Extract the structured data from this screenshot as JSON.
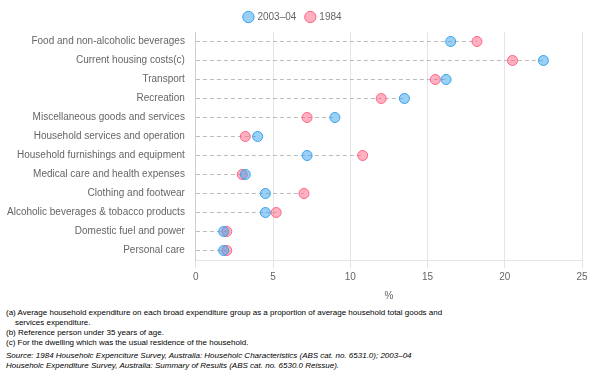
{
  "chart_data": {
    "type": "dot",
    "categories": [
      "Food and non-alcoholic beverages",
      "Current housing costs(c)",
      "Transport",
      "Recreation",
      "Miscellaneous goods and services",
      "Household services and operation",
      "Household furnishings and equipment",
      "Medical care and health expenses",
      "Clothing and footwear",
      "Alcoholic beverages & tobacco products",
      "Domestic fuel and power",
      "Personal care"
    ],
    "series": [
      {
        "name": "2003–04",
        "values": [
          16.5,
          22.5,
          16.2,
          13.5,
          9.0,
          4.0,
          7.2,
          3.2,
          4.5,
          4.5,
          1.8,
          1.8
        ]
      },
      {
        "name": "1984",
        "values": [
          18.2,
          20.5,
          15.5,
          12.0,
          7.2,
          3.2,
          10.8,
          3.0,
          7.0,
          5.2,
          2.0,
          2.0
        ]
      }
    ],
    "xlabel": "%",
    "xlim": [
      0,
      25
    ],
    "xticks": [
      0,
      5,
      10,
      15,
      20,
      25
    ],
    "grid": true,
    "legend": "top",
    "footnotes": [
      "(a) Average household expenditure on each broad expenditure group as a proportion of average household total goods and",
      "    services expenditure.",
      "(b) Reference person under 35 years of age.",
      "(c) For the dwelling which was the usual residence of the household."
    ],
    "source": [
      "Source: 1984 Householc Expenciture Survey, Australia: Householc Characteristics (ABS cat. no. 6531.0); 2003–04",
      "Householc Expenditure Survey, Australia: Summary of Results (ABS cat. no. 6530.0 Reissue)."
    ]
  }
}
